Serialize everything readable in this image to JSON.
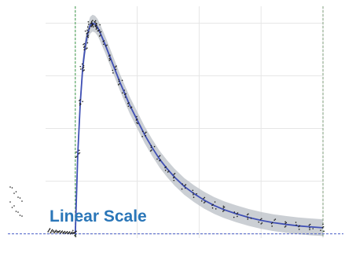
{
  "chart_data": {
    "type": "scatter",
    "title": "",
    "xlabel": "",
    "ylabel": "",
    "grid": true,
    "annotation": "Linear Scale",
    "colors": {
      "grid": "#e6e6e6",
      "points": "#1b1b1b",
      "fit_line": "#3f4fb5",
      "confidence_band": "#b7bcc4",
      "start_marker": "#3c9a4a",
      "end_marker": "#7d9e78",
      "baseline": "#4a5fc8",
      "annotation": "#2a76b8"
    },
    "model": {
      "description_hidden": true,
      "onset_x": 0.0,
      "peak_x": 0.07,
      "peak_y": 1.0,
      "baseline_y": 0.0,
      "end_x": 1.0
    },
    "markers": {
      "start_x": 0.0,
      "end_x": 1.0
    },
    "series": [
      {
        "kind": "fit",
        "points": [
          [
            0.0,
            0.0
          ],
          [
            0.01,
            0.38
          ],
          [
            0.02,
            0.62
          ],
          [
            0.03,
            0.79
          ],
          [
            0.04,
            0.89
          ],
          [
            0.05,
            0.95
          ],
          [
            0.06,
            0.99
          ],
          [
            0.07,
            1.0
          ],
          [
            0.08,
            0.995
          ],
          [
            0.09,
            0.98
          ],
          [
            0.1,
            0.955
          ],
          [
            0.12,
            0.9
          ],
          [
            0.14,
            0.84
          ],
          [
            0.16,
            0.78
          ],
          [
            0.18,
            0.72
          ],
          [
            0.2,
            0.665
          ],
          [
            0.22,
            0.61
          ],
          [
            0.25,
            0.54
          ],
          [
            0.28,
            0.47
          ],
          [
            0.31,
            0.41
          ],
          [
            0.34,
            0.355
          ],
          [
            0.37,
            0.31
          ],
          [
            0.4,
            0.27
          ],
          [
            0.44,
            0.225
          ],
          [
            0.48,
            0.19
          ],
          [
            0.52,
            0.16
          ],
          [
            0.56,
            0.135
          ],
          [
            0.6,
            0.115
          ],
          [
            0.65,
            0.095
          ],
          [
            0.7,
            0.078
          ],
          [
            0.75,
            0.064
          ],
          [
            0.8,
            0.053
          ],
          [
            0.85,
            0.045
          ],
          [
            0.9,
            0.038
          ],
          [
            0.95,
            0.033
          ],
          [
            1.0,
            0.029
          ]
        ]
      }
    ],
    "scatter_noise": {
      "pre_onset_points": [
        [
          -0.11,
          0.01
        ],
        [
          -0.105,
          0.02
        ],
        [
          -0.1,
          0.005
        ],
        [
          -0.095,
          0.015
        ],
        [
          -0.09,
          0.01
        ],
        [
          -0.085,
          0.005
        ],
        [
          -0.08,
          0.012
        ],
        [
          -0.075,
          0.008
        ],
        [
          -0.07,
          0.006
        ],
        [
          -0.065,
          0.01
        ],
        [
          -0.06,
          0.004
        ],
        [
          -0.055,
          0.009
        ],
        [
          -0.05,
          0.003
        ],
        [
          -0.045,
          0.007
        ],
        [
          -0.04,
          0.002
        ],
        [
          -0.035,
          0.006
        ],
        [
          -0.03,
          0.001
        ],
        [
          -0.025,
          0.005
        ],
        [
          -0.02,
          0.0
        ],
        [
          -0.015,
          0.004
        ],
        [
          -0.01,
          0.001
        ],
        [
          -0.005,
          0.003
        ]
      ]
    }
  }
}
